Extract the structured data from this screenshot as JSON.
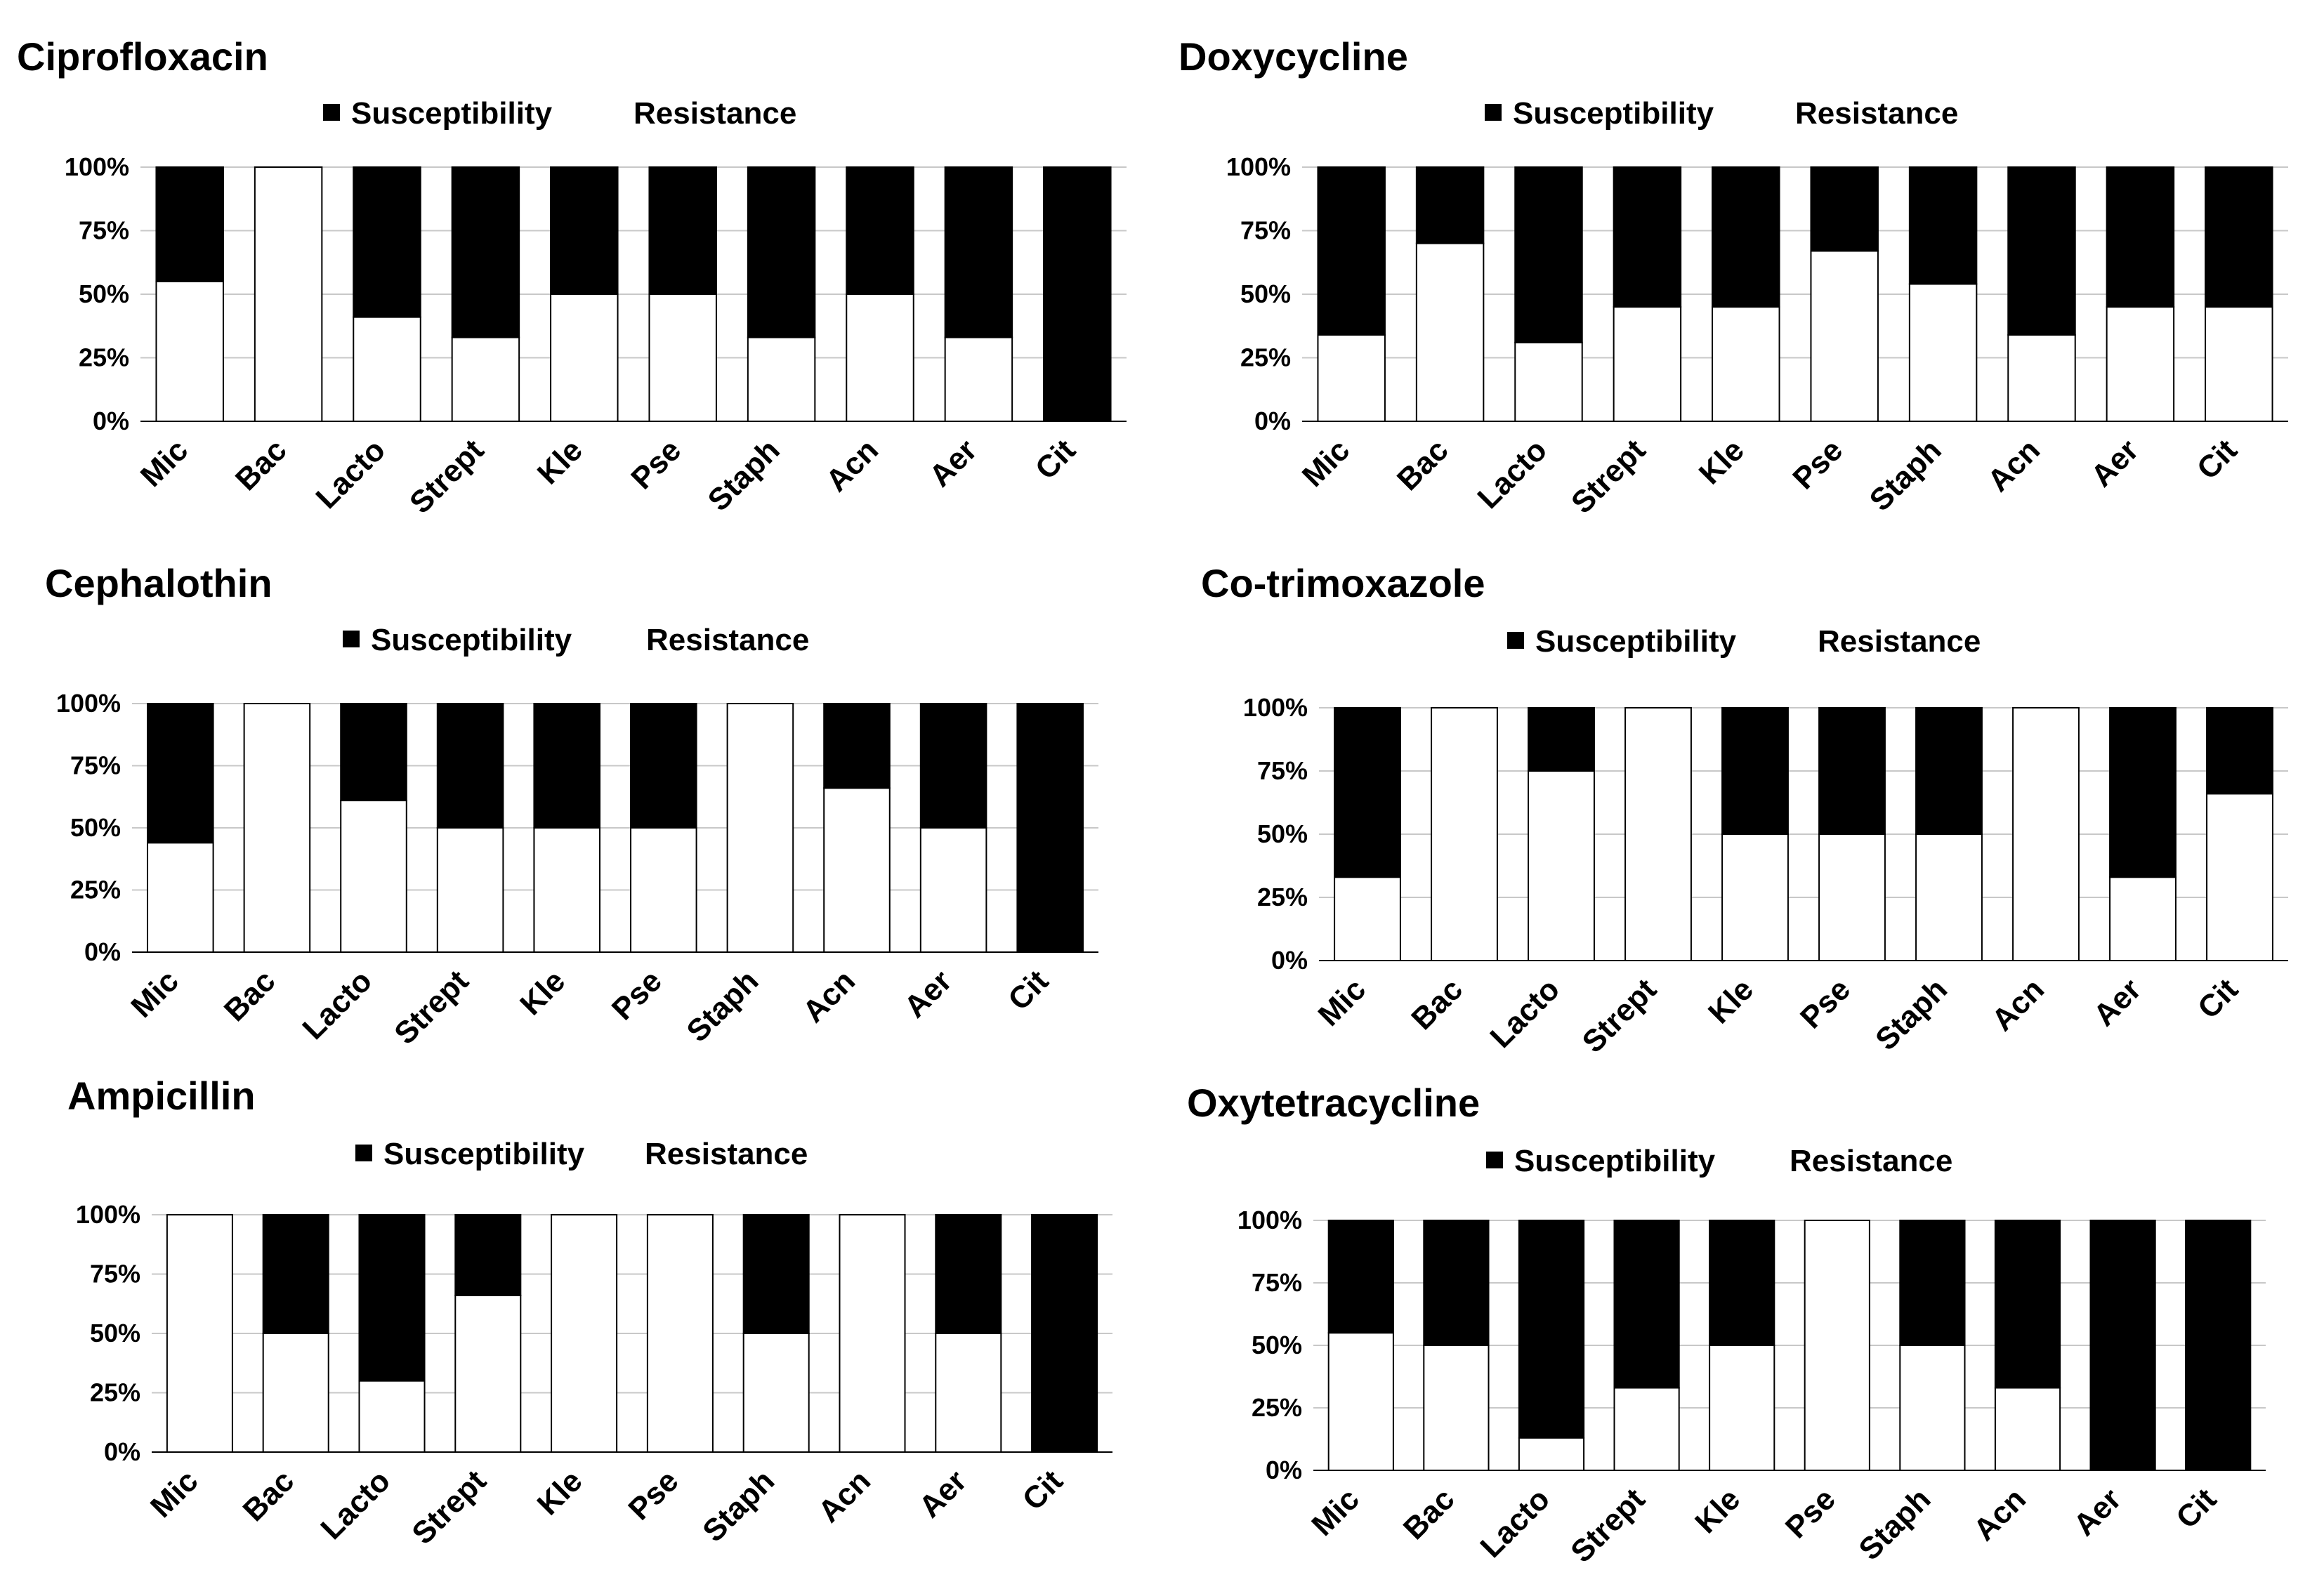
{
  "chart_data": [
    {
      "type": "bar",
      "title": "Ciprofloxacin",
      "legend": [
        "Susceptibility",
        "Resistance"
      ],
      "categories": [
        "Mic",
        "Bac",
        "Lacto",
        "Strept",
        "Kle",
        "Pse",
        "Staph",
        "Acn",
        "Aer",
        "Cit"
      ],
      "series": [
        {
          "name": "Resistance",
          "color": "#ffffff",
          "values": [
            55,
            100,
            41,
            33,
            50,
            50,
            33,
            50,
            33,
            0
          ]
        },
        {
          "name": "Susceptibility",
          "color": "#000000",
          "values": [
            45,
            0,
            59,
            67,
            50,
            50,
            67,
            50,
            67,
            100
          ]
        }
      ],
      "yticks": [
        "0%",
        "25%",
        "50%",
        "75%",
        "100%"
      ],
      "ylim": [
        0,
        100
      ],
      "stacked": true,
      "legend_position": "top"
    },
    {
      "type": "bar",
      "title": "Doxycycline",
      "legend": [
        "Susceptibility",
        "Resistance"
      ],
      "categories": [
        "Mic",
        "Bac",
        "Lacto",
        "Strept",
        "Kle",
        "Pse",
        "Staph",
        "Acn",
        "Aer",
        "Cit"
      ],
      "series": [
        {
          "name": "Resistance",
          "color": "#ffffff",
          "values": [
            34,
            70,
            31,
            45,
            45,
            67,
            54,
            34,
            45,
            45
          ]
        },
        {
          "name": "Susceptibility",
          "color": "#000000",
          "values": [
            66,
            30,
            69,
            55,
            55,
            33,
            46,
            66,
            55,
            55
          ]
        }
      ],
      "yticks": [
        "0%",
        "25%",
        "50%",
        "75%",
        "100%"
      ],
      "ylim": [
        0,
        100
      ],
      "stacked": true,
      "legend_position": "top"
    },
    {
      "type": "bar",
      "title": "Cephalothin",
      "legend": [
        "Susceptibility",
        "Resistance"
      ],
      "categories": [
        "Mic",
        "Bac",
        "Lacto",
        "Strept",
        "Kle",
        "Pse",
        "Staph",
        "Acn",
        "Aer",
        "Cit"
      ],
      "series": [
        {
          "name": "Resistance",
          "color": "#ffffff",
          "values": [
            44,
            100,
            61,
            50,
            50,
            50,
            100,
            66,
            50,
            0
          ]
        },
        {
          "name": "Susceptibility",
          "color": "#000000",
          "values": [
            56,
            0,
            39,
            50,
            50,
            50,
            0,
            34,
            50,
            100
          ]
        }
      ],
      "yticks": [
        "0%",
        "25%",
        "50%",
        "75%",
        "100%"
      ],
      "ylim": [
        0,
        100
      ],
      "stacked": true,
      "legend_position": "top"
    },
    {
      "type": "bar",
      "title": "Co-trimoxazole",
      "legend": [
        "Susceptibility",
        "Resistance"
      ],
      "categories": [
        "Mic",
        "Bac",
        "Lacto",
        "Strept",
        "Kle",
        "Pse",
        "Staph",
        "Acn",
        "Aer",
        "Cit"
      ],
      "series": [
        {
          "name": "Resistance",
          "color": "#ffffff",
          "values": [
            33,
            100,
            75,
            100,
            50,
            50,
            50,
            100,
            33,
            66
          ]
        },
        {
          "name": "Susceptibility",
          "color": "#000000",
          "values": [
            67,
            0,
            25,
            0,
            50,
            50,
            50,
            0,
            67,
            34
          ]
        }
      ],
      "yticks": [
        "0%",
        "25%",
        "50%",
        "75%",
        "100%"
      ],
      "ylim": [
        0,
        100
      ],
      "stacked": true,
      "legend_position": "top"
    },
    {
      "type": "bar",
      "title": "Ampicillin",
      "legend": [
        "Susceptibility",
        "Resistance"
      ],
      "categories": [
        "Mic",
        "Bac",
        "Lacto",
        "Strept",
        "Kle",
        "Pse",
        "Staph",
        "Acn",
        "Aer",
        "Cit"
      ],
      "series": [
        {
          "name": "Resistance",
          "color": "#ffffff",
          "values": [
            100,
            50,
            30,
            66,
            100,
            100,
            50,
            100,
            50,
            0
          ]
        },
        {
          "name": "Susceptibility",
          "color": "#000000",
          "values": [
            0,
            50,
            70,
            34,
            0,
            0,
            50,
            0,
            50,
            100
          ]
        }
      ],
      "yticks": [
        "0%",
        "25%",
        "50%",
        "75%",
        "100%"
      ],
      "ylim": [
        0,
        100
      ],
      "stacked": true,
      "legend_position": "top"
    },
    {
      "type": "bar",
      "title": "Oxytetracycline",
      "legend": [
        "Susceptibility",
        "Resistance"
      ],
      "categories": [
        "Mic",
        "Bac",
        "Lacto",
        "Strept",
        "Kle",
        "Pse",
        "Staph",
        "Acn",
        "Aer",
        "Cit"
      ],
      "series": [
        {
          "name": "Resistance",
          "color": "#ffffff",
          "values": [
            55,
            50,
            13,
            33,
            50,
            100,
            50,
            33,
            0,
            0
          ]
        },
        {
          "name": "Susceptibility",
          "color": "#000000",
          "values": [
            45,
            50,
            87,
            67,
            50,
            0,
            50,
            67,
            100,
            100
          ]
        }
      ],
      "yticks": [
        "0%",
        "25%",
        "50%",
        "75%",
        "100%"
      ],
      "ylim": [
        0,
        100
      ],
      "stacked": true,
      "legend_position": "top"
    }
  ]
}
